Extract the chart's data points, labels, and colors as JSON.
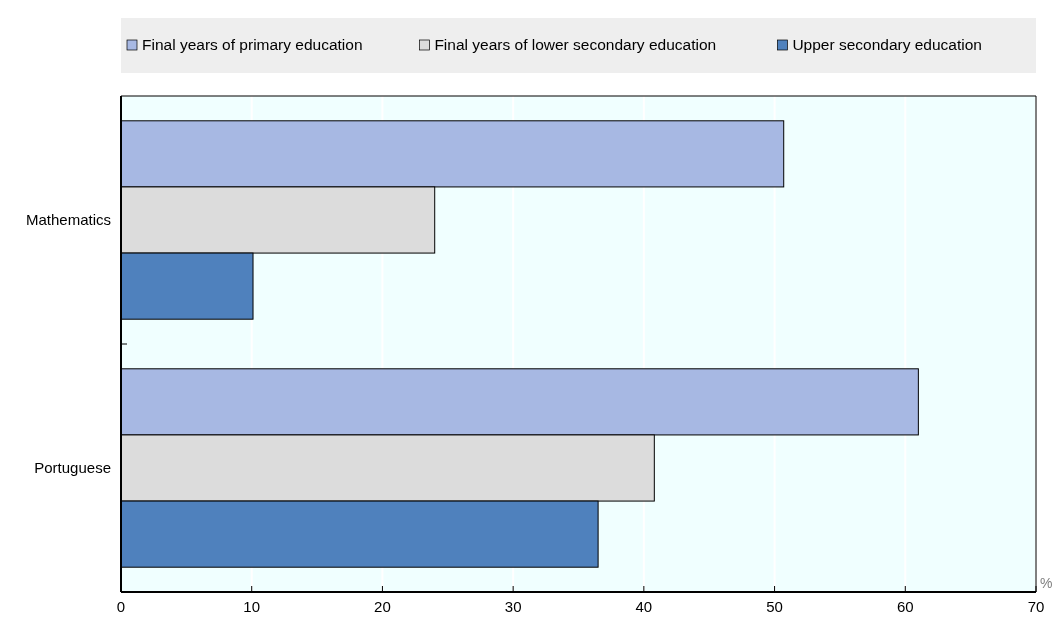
{
  "chart_data": {
    "type": "bar",
    "orientation": "horizontal",
    "xlabel": "%",
    "categories": [
      "Mathematics",
      "Portuguese"
    ],
    "series": [
      {
        "name": "Final years of primary education",
        "color": "#a7b8e3",
        "values": [
          50.7,
          61.0
        ]
      },
      {
        "name": "Final years of lower secondary education",
        "color": "#dcdcdc",
        "values": [
          24.0,
          40.8
        ]
      },
      {
        "name": "Upper secondary education",
        "color": "#4f81bd",
        "values": [
          10.1,
          36.5
        ]
      }
    ],
    "xlim": [
      0,
      70
    ],
    "xticks": [
      0,
      10,
      20,
      30,
      40,
      50,
      60,
      70
    ],
    "grid": "x",
    "legend": "top"
  }
}
